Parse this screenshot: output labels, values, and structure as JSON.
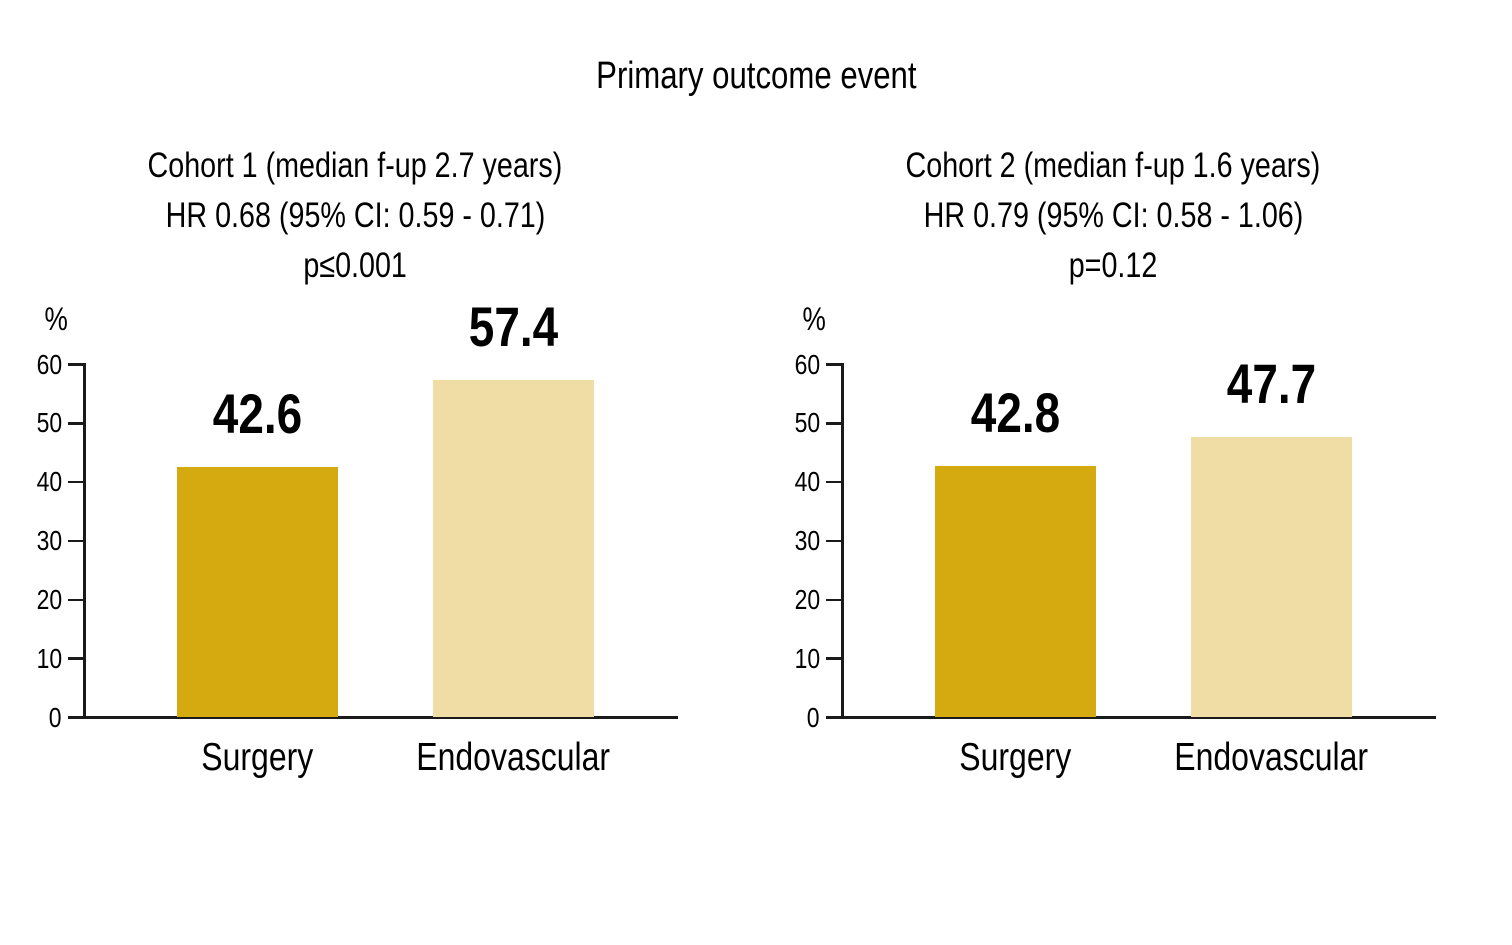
{
  "figure": {
    "title": "Primary outcome event"
  },
  "chart_data": [
    {
      "type": "bar",
      "panel": "Cohort 1",
      "subtitle_lines": [
        "Cohort 1 (median f-up 2.7 years)",
        "HR 0.68 (95% CI: 0.59 - 0.71)",
        "p≤0.001"
      ],
      "ylabel": "%",
      "ylim": [
        0,
        60
      ],
      "yticks": [
        0,
        10,
        20,
        30,
        40,
        50,
        60
      ],
      "grid": false,
      "legend": "none",
      "categories": [
        "Surgery",
        "Endovascular"
      ],
      "values": [
        42.6,
        57.4
      ],
      "value_labels": [
        "42.6",
        "57.4"
      ],
      "bar_colors": [
        "#d5a910",
        "#f0dca5"
      ]
    },
    {
      "type": "bar",
      "panel": "Cohort 2",
      "subtitle_lines": [
        "Cohort 2 (median f-up 1.6 years)",
        "HR 0.79 (95% CI: 0.58 - 1.06)",
        "p=0.12"
      ],
      "ylabel": "%",
      "ylim": [
        0,
        60
      ],
      "yticks": [
        0,
        10,
        20,
        30,
        40,
        50,
        60
      ],
      "grid": false,
      "legend": "none",
      "categories": [
        "Surgery",
        "Endovascular"
      ],
      "values": [
        42.8,
        47.7
      ],
      "value_labels": [
        "42.8",
        "47.7"
      ],
      "bar_colors": [
        "#d5a910",
        "#f0dca5"
      ]
    }
  ],
  "colors": {
    "surgery_bar": "#d5a910",
    "endovascular_bar": "#f0dca5",
    "axis": "#1a1a1a",
    "text": "#000000",
    "background": "#ffffff"
  }
}
